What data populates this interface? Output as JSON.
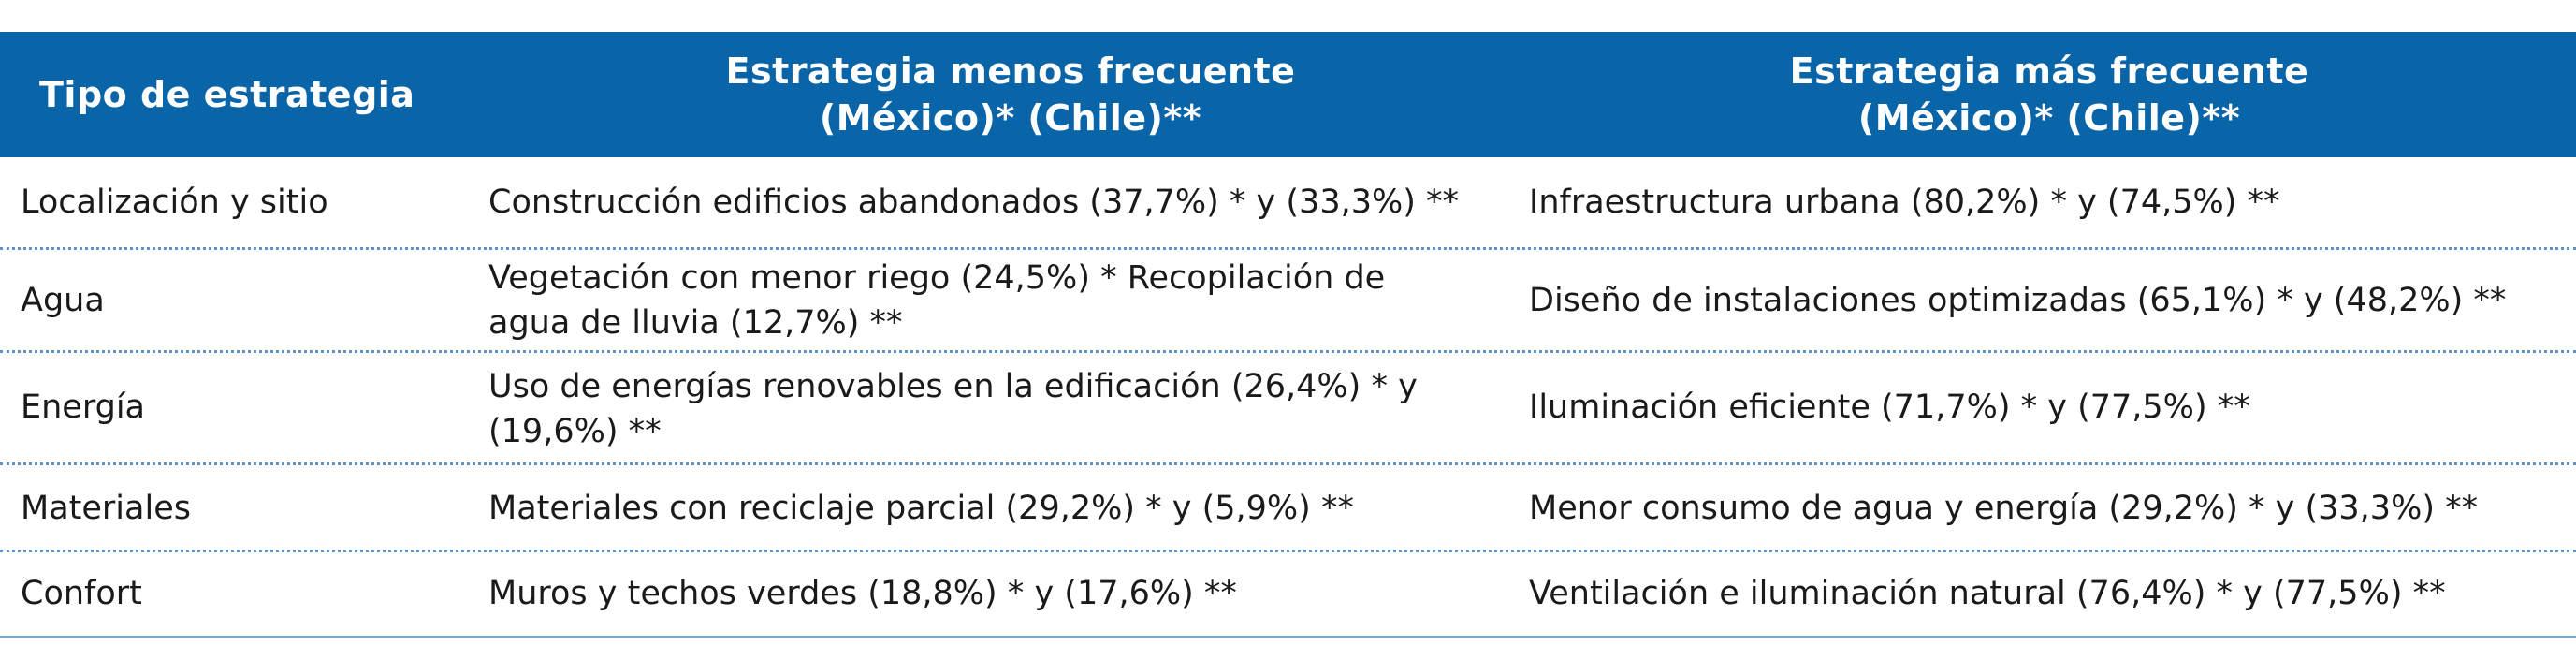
{
  "table": {
    "headers": {
      "col1": "Tipo de estrategia",
      "col2_line1": "Estrategia menos frecuente",
      "col2_line2": "(México)* (Chile)**",
      "col3_line1": "Estrategia más frecuente",
      "col3_line2": "(México)* (Chile)**"
    },
    "rows": [
      {
        "type": "Localización y sitio",
        "less_line1": "Construcción edificios abandonados (37,7%) * y (33,3%) **",
        "less_line2": "",
        "more": "Infraestructura urbana (80,2%) * y (74,5%) **"
      },
      {
        "type": "Agua",
        "less_line1": "Vegetación con menor riego (24,5%) * Recopilación de",
        "less_line2": "agua de lluvia (12,7%) **",
        "more": "Diseño de instalaciones optimizadas (65,1%) * y (48,2%) **"
      },
      {
        "type": "Energía",
        "less_line1": "Uso de energías renovables en la edificación (26,4%) * y",
        "less_line2": "(19,6%) **",
        "more": "Iluminación eficiente (71,7%) * y (77,5%) **"
      },
      {
        "type": "Materiales",
        "less_line1": "Materiales con reciclaje parcial (29,2%) * y (5,9%) **",
        "less_line2": "",
        "more": "Menor consumo de agua y energía (29,2%) * y (33,3%) **"
      },
      {
        "type": "Confort",
        "less_line1": "Muros y techos verdes (18,8%) * y (17,6%) **",
        "less_line2": "",
        "more": "Ventilación e iluminación natural (76,4%) * y (77,5%) **"
      }
    ]
  }
}
